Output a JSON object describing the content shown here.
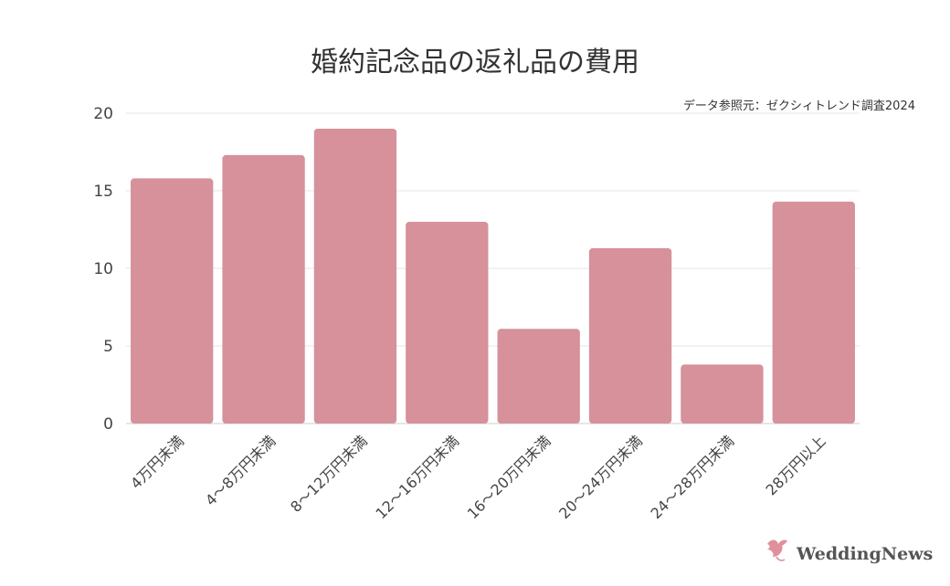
{
  "chart_data": {
    "type": "bar",
    "title": "婚約記念品の返礼品の費用",
    "source_note": "データ参照元：ゼクシィトレンド調査2024",
    "categories": [
      "4万円未満",
      "4～8万円未満",
      "8～12万円未満",
      "12～16万円未満",
      "16～20万円未満",
      "20～24万円未満",
      "24～28万円未満",
      "28万円以上"
    ],
    "values": [
      15.8,
      17.3,
      19.0,
      13.0,
      6.1,
      11.3,
      3.8,
      14.3
    ],
    "ylim": [
      0,
      20
    ],
    "yticks": [
      0,
      5,
      10,
      15,
      20
    ],
    "grid": true,
    "bar_color": "#d6919a"
  },
  "branding": {
    "logo_text": "WeddingNews",
    "logo_color": "#e0909a",
    "icon": "dove-icon"
  }
}
